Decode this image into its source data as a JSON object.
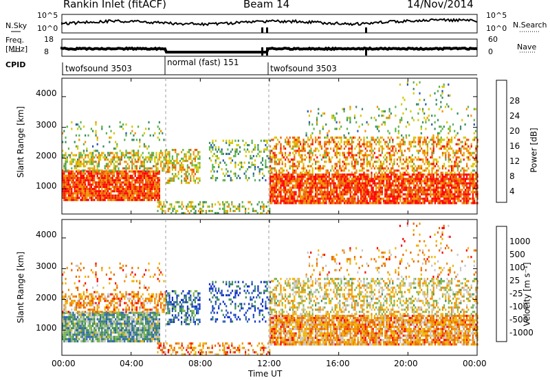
{
  "header": {
    "title": "Rankin Inlet (fitACF)",
    "beam": "Beam 14",
    "date": "14/Nov/2014"
  },
  "status": {
    "left_label_1": "N.Sky",
    "left_ticks_1": [
      "10^5",
      "10^0"
    ],
    "left_label_2a": "Freq.",
    "left_label_2b": "[MHz]",
    "left_ticks_2": [
      "18",
      "8"
    ],
    "cpid_label": "CPID",
    "right_label_1": "N.Search",
    "right_ticks_1": [
      "10^5",
      "10^0"
    ],
    "right_label_2": "Nave",
    "right_ticks_2": [
      "60",
      "0"
    ],
    "cpid_segments": [
      "twofsound 3503",
      "normal (fast) 151",
      "twofsound 3503"
    ]
  },
  "chart_data": [
    {
      "type": "heatmap",
      "panel": "power",
      "xlabel": "",
      "ylabel": "Slant Range [km]",
      "xlim": [
        0,
        24
      ],
      "ylim": [
        180,
        4600
      ],
      "yticks": [
        "1000",
        "2000",
        "3000",
        "4000"
      ],
      "colorbar_label": "Power [dB]",
      "colorbar_ticks": [
        "4",
        "8",
        "12",
        "16",
        "20",
        "24",
        "28"
      ],
      "colors": [
        "#0000ff",
        "#2c56b4",
        "#3a8c64",
        "#5ab44a",
        "#d8c800",
        "#f29200",
        "#e85800",
        "#ff0000"
      ],
      "scatter_bands": [
        {
          "t0": 0.0,
          "t1": 5.6,
          "r0": 600,
          "r1": 1600,
          "level": 0.85,
          "density": 0.9
        },
        {
          "t0": 0.0,
          "t1": 6.0,
          "r0": 1600,
          "r1": 2200,
          "level": 0.55,
          "density": 0.55
        },
        {
          "t0": 0.0,
          "t1": 6.0,
          "r0": 2200,
          "r1": 3200,
          "level": 0.45,
          "density": 0.12
        },
        {
          "t0": 6.0,
          "t1": 8.0,
          "r0": 1200,
          "r1": 2300,
          "level": 0.6,
          "density": 0.45
        },
        {
          "t0": 8.5,
          "t1": 12.0,
          "r0": 1300,
          "r1": 2600,
          "level": 0.4,
          "density": 0.25
        },
        {
          "t0": 5.5,
          "t1": 12.0,
          "r0": 200,
          "r1": 600,
          "level": 0.5,
          "density": 0.35
        },
        {
          "t0": 12.0,
          "t1": 24.0,
          "r0": 500,
          "r1": 1500,
          "level": 0.85,
          "density": 0.85
        },
        {
          "t0": 12.0,
          "t1": 24.0,
          "r0": 1500,
          "r1": 2700,
          "level": 0.7,
          "density": 0.45
        },
        {
          "t0": 14.0,
          "t1": 24.0,
          "r0": 2700,
          "r1": 3700,
          "level": 0.45,
          "density": 0.1
        },
        {
          "t0": 19.5,
          "t1": 22.5,
          "r0": 3700,
          "r1": 4500,
          "level": 0.4,
          "density": 0.08
        }
      ]
    },
    {
      "type": "heatmap",
      "panel": "velocity",
      "xlabel": "Time UT",
      "ylabel": "Slant Range [km]",
      "xlim": [
        0,
        24
      ],
      "ylim": [
        180,
        4600
      ],
      "xticks": [
        "00:00",
        "04:00",
        "08:00",
        "12:00",
        "16:00",
        "20:00",
        "00:00"
      ],
      "yticks": [
        "1000",
        "2000",
        "3000",
        "4000"
      ],
      "colorbar_label": "Velocity [m s⁻¹]",
      "colorbar_ticks": [
        "1000",
        "500",
        "100",
        "25",
        "-25",
        "-100",
        "-500",
        "-1000"
      ],
      "colors": [
        "#1432c8",
        "#2e64b4",
        "#3c8c5a",
        "#78b450",
        "#c8c8c8",
        "#f0b400",
        "#f08c00",
        "#e86400",
        "#ff0000"
      ],
      "scatter_bands": [
        {
          "t0": 0.0,
          "t1": 5.6,
          "r0": 600,
          "r1": 1600,
          "level": 0.35,
          "density": 0.9
        },
        {
          "t0": 0.0,
          "t1": 6.0,
          "r0": 1600,
          "r1": 2200,
          "level": 0.7,
          "density": 0.55
        },
        {
          "t0": 0.0,
          "t1": 6.0,
          "r0": 2200,
          "r1": 3200,
          "level": 0.75,
          "density": 0.12
        },
        {
          "t0": 6.0,
          "t1": 8.0,
          "r0": 1200,
          "r1": 2300,
          "level": 0.2,
          "density": 0.45
        },
        {
          "t0": 8.5,
          "t1": 12.0,
          "r0": 1300,
          "r1": 2600,
          "level": 0.1,
          "density": 0.25
        },
        {
          "t0": 5.5,
          "t1": 12.0,
          "r0": 200,
          "r1": 600,
          "level": 0.75,
          "density": 0.35
        },
        {
          "t0": 12.0,
          "t1": 24.0,
          "r0": 500,
          "r1": 1500,
          "level": 0.7,
          "density": 0.85
        },
        {
          "t0": 12.0,
          "t1": 24.0,
          "r0": 1500,
          "r1": 2700,
          "level": 0.55,
          "density": 0.45
        },
        {
          "t0": 14.0,
          "t1": 24.0,
          "r0": 2700,
          "r1": 3700,
          "level": 0.7,
          "density": 0.1
        },
        {
          "t0": 19.5,
          "t1": 22.5,
          "r0": 3700,
          "r1": 4500,
          "level": 0.75,
          "density": 0.08
        }
      ]
    }
  ]
}
